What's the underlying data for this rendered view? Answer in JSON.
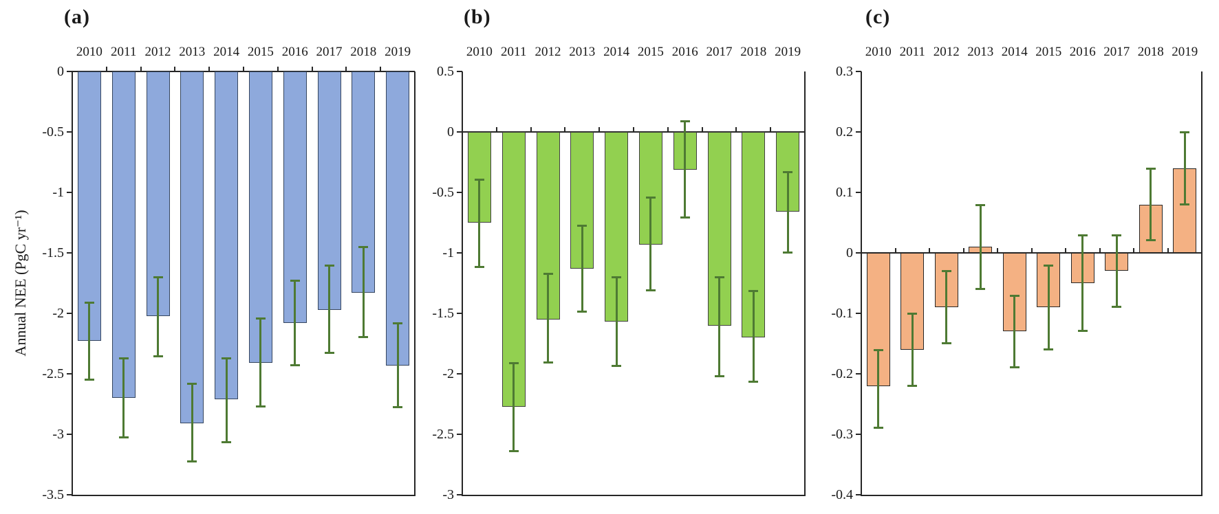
{
  "figure": {
    "ylabel": "Annual NEE (PgC yr⁻¹)",
    "error_bar_color": "#4e7a33",
    "axis_color": "#262626",
    "background": "#ffffff"
  },
  "chart_data": [
    {
      "type": "bar",
      "panel_label": "(a)",
      "bar_color": "#8EA9DC",
      "bar_border_color": "#35455e",
      "categories": [
        "2010",
        "2011",
        "2012",
        "2013",
        "2014",
        "2015",
        "2016",
        "2017",
        "2018",
        "2019"
      ],
      "values": [
        -2.23,
        -2.7,
        -2.02,
        -2.91,
        -2.71,
        -2.41,
        -2.08,
        -1.97,
        -1.83,
        -2.43
      ],
      "error_top": [
        -1.91,
        -2.37,
        -1.7,
        -2.58,
        -2.37,
        -2.04,
        -1.73,
        -1.6,
        -1.45,
        -2.08
      ],
      "error_bottom": [
        -2.55,
        -3.03,
        -2.36,
        -3.23,
        -3.07,
        -2.77,
        -2.43,
        -2.33,
        -2.2,
        -2.78
      ],
      "ylabel": "Annual NEE (PgC yr⁻¹)",
      "ylim": [
        -3.5,
        0
      ],
      "ytick_values": [
        0,
        -0.5,
        -1,
        -1.5,
        -2,
        -2.5,
        -3,
        -3.5
      ],
      "ytick_labels": [
        "0",
        "-0.5",
        "-1",
        "-1.5",
        "-2",
        "-2.5",
        "-3",
        "-3.5"
      ],
      "grid": "off",
      "legend": "none"
    },
    {
      "type": "bar",
      "panel_label": "(b)",
      "bar_color": "#92D050",
      "bar_border_color": "#404040",
      "categories": [
        "2010",
        "2011",
        "2012",
        "2013",
        "2014",
        "2015",
        "2016",
        "2017",
        "2018",
        "2019"
      ],
      "values": [
        -0.75,
        -2.27,
        -1.55,
        -1.13,
        -1.57,
        -0.93,
        -0.31,
        -1.6,
        -1.7,
        -0.66
      ],
      "error_top": [
        -0.39,
        -1.91,
        -1.17,
        -0.77,
        -1.2,
        -0.54,
        0.09,
        -1.2,
        -1.31,
        -0.33
      ],
      "error_bottom": [
        -1.12,
        -2.64,
        -1.91,
        -1.49,
        -1.94,
        -1.31,
        -0.71,
        -2.02,
        -2.07,
        -1.0
      ],
      "ylabel": "",
      "ylim": [
        -3,
        0.5
      ],
      "ytick_values": [
        0.5,
        0,
        -0.5,
        -1,
        -1.5,
        -2,
        -2.5,
        -3
      ],
      "ytick_labels": [
        "0.5",
        "0",
        "-0.5",
        "-1",
        "-1.5",
        "-2",
        "-2.5",
        "-3"
      ],
      "grid": "off",
      "legend": "none"
    },
    {
      "type": "bar",
      "panel_label": "(c)",
      "bar_color": "#F4B183",
      "bar_border_color": "#262626",
      "categories": [
        "2010",
        "2011",
        "2012",
        "2013",
        "2014",
        "2015",
        "2016",
        "2017",
        "2018",
        "2019"
      ],
      "values": [
        -0.22,
        -0.16,
        -0.09,
        0.01,
        -0.13,
        -0.09,
        -0.05,
        -0.03,
        0.08,
        0.14
      ],
      "error_top": [
        -0.16,
        -0.1,
        -0.03,
        0.08,
        -0.07,
        -0.02,
        0.03,
        0.03,
        0.14,
        0.2
      ],
      "error_bottom": [
        -0.29,
        -0.22,
        -0.15,
        -0.06,
        -0.19,
        -0.16,
        -0.13,
        -0.09,
        0.02,
        0.08
      ],
      "ylabel": "",
      "ylim": [
        -0.4,
        0.3
      ],
      "ytick_values": [
        0.3,
        0.2,
        0.1,
        0,
        -0.1,
        -0.2,
        -0.3,
        -0.4
      ],
      "ytick_labels": [
        "0.3",
        "0.2",
        "0.1",
        "0",
        "-0.1",
        "-0.2",
        "-0.3",
        "-0.4"
      ],
      "grid": "off",
      "legend": "none"
    }
  ]
}
